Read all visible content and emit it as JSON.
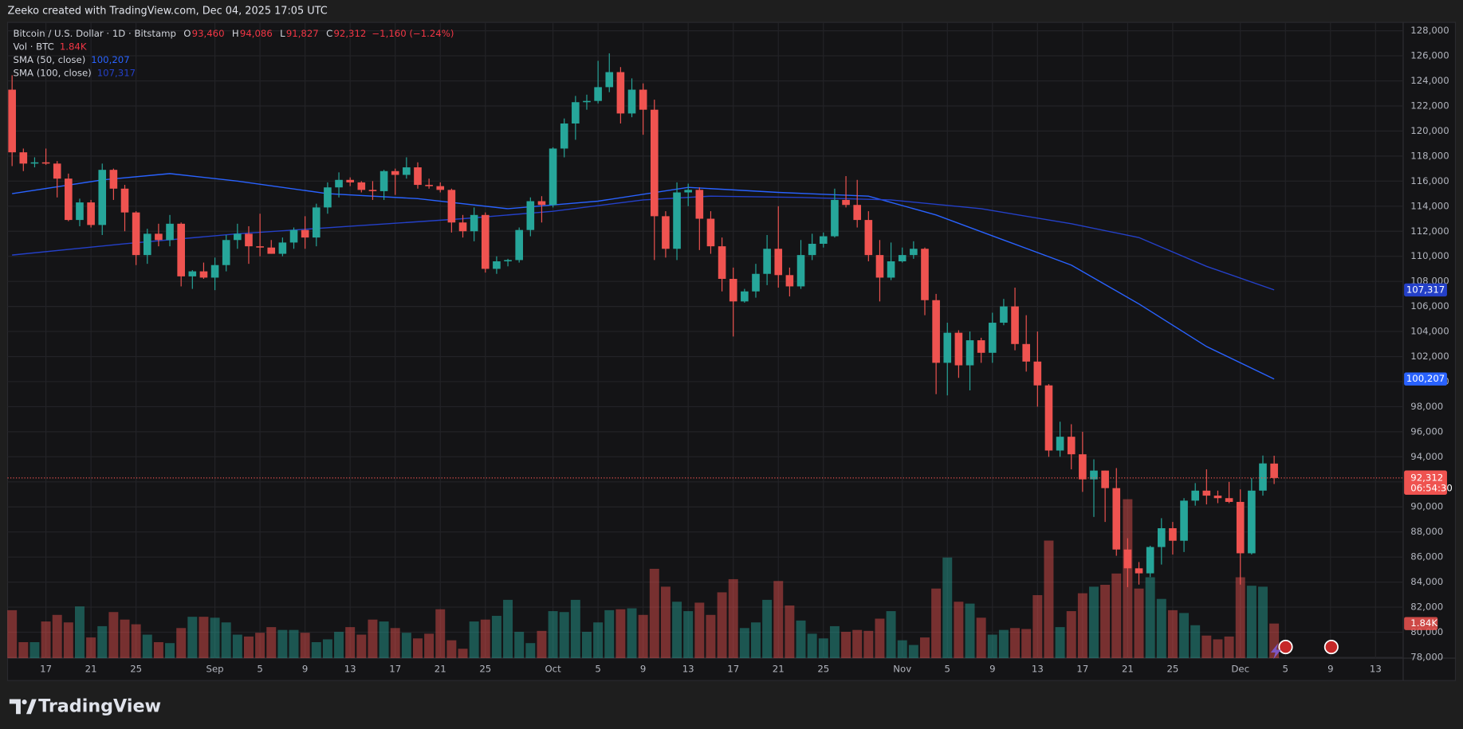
{
  "chart_data": {
    "type": "candlestick",
    "title": "Zeeko created with TradingView.com, Dec 04, 2025 17:05 UTC",
    "legend": {
      "symbol": "Bitcoin / U.S. Dollar · 1D · Bitstamp",
      "ohlc": [
        {
          "key": "O",
          "value": "93,460"
        },
        {
          "key": "H",
          "value": "94,086"
        },
        {
          "key": "L",
          "value": "91,827"
        },
        {
          "key": "C",
          "value": "92,312"
        }
      ],
      "change": "−1,160 (−1.24%)"
    },
    "candles": {
      "up_color": "#26a69a",
      "down_color": "#ef5350",
      "open": [
        123300,
        118300,
        117400,
        117500,
        117400,
        116200,
        112900,
        114300,
        112500,
        116900,
        115400,
        113500,
        110100,
        111800,
        111300,
        112600,
        108400,
        108800,
        108300,
        109300,
        111300,
        111800,
        110800,
        110700,
        110200,
        111100,
        112100,
        111500,
        113900,
        115500,
        116100,
        115900,
        115300,
        115200,
        116800,
        116500,
        117100,
        115700,
        115600,
        115300,
        112700,
        112000,
        113300,
        109000,
        109600,
        109700,
        112100,
        114400,
        114100,
        118600,
        120600,
        122300,
        122400,
        123500,
        124700,
        121400,
        123300,
        121700,
        113200,
        110600,
        115100,
        115300,
        113000,
        110800,
        108200,
        106400,
        107200,
        108600,
        110600,
        108500,
        107600,
        110100,
        111000,
        111600,
        114500,
        114100,
        112900,
        110100,
        108300,
        109600,
        110100,
        110600,
        106500,
        101500,
        103900,
        101300,
        103300,
        102300,
        104700,
        106000,
        103000,
        101600,
        99700,
        94500,
        95600,
        94200,
        92200,
        92900,
        91500,
        86600,
        85100,
        84700,
        86800,
        88300,
        87300,
        90500,
        91300,
        90900,
        90700,
        90400,
        86300,
        91300,
        93460
      ],
      "high": [
        124450,
        118600,
        117900,
        118600,
        117600,
        116600,
        114600,
        114500,
        117400,
        117000,
        115700,
        113600,
        112200,
        112600,
        113300,
        112700,
        108900,
        109500,
        109900,
        111700,
        112600,
        112400,
        113400,
        111300,
        111500,
        112300,
        113200,
        114200,
        115900,
        116700,
        116300,
        116000,
        116000,
        116900,
        117000,
        117900,
        117500,
        116200,
        115900,
        115400,
        113300,
        113900,
        113500,
        110000,
        109800,
        112300,
        114700,
        114800,
        118700,
        121000,
        122800,
        122900,
        125600,
        126200,
        125100,
        124200,
        123800,
        122500,
        113600,
        115900,
        115800,
        115500,
        113600,
        111500,
        109100,
        107400,
        109400,
        111700,
        114000,
        109100,
        111300,
        111800,
        111900,
        115400,
        116400,
        116100,
        113600,
        111300,
        111100,
        110700,
        111200,
        110700,
        107000,
        104700,
        104100,
        104000,
        103500,
        105500,
        106600,
        107500,
        105300,
        104000,
        99800,
        96800,
        96600,
        96000,
        93800,
        92900,
        93100,
        87500,
        85600,
        86900,
        89100,
        88800,
        90700,
        91900,
        93000,
        91300,
        92000,
        91400,
        92300,
        94100,
        94086
      ],
      "low": [
        117200,
        116800,
        117100,
        117300,
        114700,
        112800,
        112400,
        112300,
        111700,
        114500,
        112000,
        109300,
        109400,
        110800,
        110800,
        107600,
        107400,
        108200,
        107300,
        108800,
        110600,
        109400,
        110000,
        110200,
        110000,
        110600,
        110600,
        110800,
        113400,
        114700,
        115600,
        115100,
        114500,
        114500,
        114900,
        116200,
        115400,
        115400,
        115100,
        111900,
        111500,
        111200,
        108700,
        108600,
        109200,
        109500,
        111600,
        112700,
        113900,
        117900,
        119300,
        121700,
        122200,
        123100,
        120600,
        121100,
        119700,
        109700,
        109900,
        109700,
        114000,
        110500,
        110200,
        107200,
        103600,
        106300,
        106700,
        107700,
        107500,
        106800,
        107400,
        109700,
        110700,
        111500,
        113900,
        112300,
        109600,
        106400,
        108100,
        109500,
        109800,
        105300,
        99000,
        98900,
        100300,
        99300,
        101500,
        101500,
        104500,
        102500,
        100800,
        98000,
        94000,
        94000,
        93000,
        91200,
        89200,
        88800,
        86100,
        83600,
        83800,
        84400,
        85400,
        86200,
        86400,
        90100,
        90200,
        90300,
        90300,
        83800,
        86200,
        90900,
        91827
      ],
      "close": [
        118300,
        117400,
        117500,
        117400,
        116200,
        112900,
        114300,
        112500,
        116900,
        115400,
        113500,
        110100,
        111800,
        111300,
        112600,
        108400,
        108800,
        108300,
        109300,
        111300,
        111800,
        110800,
        110700,
        110200,
        111100,
        112100,
        111500,
        113900,
        115500,
        116100,
        115900,
        115300,
        115200,
        116800,
        116500,
        117100,
        115700,
        115600,
        115300,
        112700,
        112000,
        113300,
        109000,
        109600,
        109700,
        112100,
        114400,
        114100,
        118600,
        120600,
        122300,
        122400,
        123500,
        124700,
        121400,
        123300,
        121700,
        113200,
        110600,
        115100,
        115300,
        113000,
        110800,
        108200,
        106400,
        107200,
        108600,
        110600,
        108500,
        107600,
        110100,
        111000,
        111600,
        114500,
        114100,
        112900,
        110100,
        108300,
        109600,
        110100,
        110600,
        106500,
        101500,
        103900,
        101300,
        103300,
        102300,
        104700,
        106000,
        103000,
        101600,
        99700,
        94500,
        95600,
        94200,
        92200,
        92900,
        91500,
        86600,
        85100,
        84700,
        86800,
        88300,
        87300,
        90500,
        91300,
        90900,
        90700,
        90400,
        86300,
        91300,
        93472,
        92312
      ],
      "last_label": "92,312",
      "countdown": "06:54:30"
    },
    "volume": {
      "name": "Vol · BTC",
      "values": [
        2550,
        850,
        850,
        1950,
        2300,
        1900,
        2750,
        1100,
        1700,
        2450,
        2050,
        1800,
        1250,
        850,
        800,
        1600,
        2200,
        2200,
        2150,
        1900,
        1250,
        1150,
        1350,
        1650,
        1500,
        1500,
        1350,
        850,
        1000,
        1400,
        1650,
        1250,
        2050,
        1950,
        1600,
        1350,
        1050,
        1300,
        2600,
        950,
        500,
        1950,
        2050,
        2250,
        3100,
        1400,
        800,
        1450,
        2500,
        2450,
        3100,
        1400,
        1900,
        2550,
        2600,
        2650,
        2300,
        4750,
        3800,
        3000,
        2500,
        2950,
        2300,
        3500,
        4200,
        1600,
        1900,
        3100,
        4100,
        2800,
        2000,
        1300,
        1050,
        1700,
        1400,
        1500,
        1450,
        2100,
        2500,
        950,
        700,
        1100,
        3700,
        5350,
        3000,
        2900,
        2150,
        1250,
        1500,
        1600,
        1550,
        3350,
        6250,
        1650,
        2500,
        3450,
        3800,
        3900,
        4500,
        8450,
        3700,
        4300,
        3150,
        2550,
        2400,
        1750,
        1200,
        1000,
        1150,
        4300,
        3850,
        3800,
        1840
      ],
      "value_label": "1.84K"
    },
    "series": [
      {
        "name": "SMA (50, close)",
        "color": "#2962ff",
        "x": [
          0,
          8,
          14,
          20,
          28,
          36,
          44,
          52,
          60,
          68,
          76,
          82,
          88,
          94,
          100,
          106,
          112
        ],
        "values": [
          115000,
          116100,
          116600,
          116000,
          115000,
          114600,
          113800,
          114400,
          115500,
          115100,
          114800,
          113300,
          111300,
          109300,
          106200,
          102800,
          100207
        ],
        "value_label": "100,207"
      },
      {
        "name": "SMA (100, close)",
        "color": "#2440c8",
        "x": [
          0,
          10,
          20,
          30,
          40,
          48,
          56,
          62,
          70,
          78,
          86,
          94,
          100,
          106,
          112
        ],
        "values": [
          110100,
          111000,
          111800,
          112400,
          113000,
          113600,
          114500,
          114800,
          114700,
          114500,
          113800,
          112600,
          111500,
          109200,
          107317
        ],
        "value_label": "107,317"
      }
    ],
    "xlim": [
      -0.4,
      123.45
    ],
    "xticks": [
      {
        "value": 3,
        "label": "17"
      },
      {
        "value": 7,
        "label": "21"
      },
      {
        "value": 11,
        "label": "25"
      },
      {
        "value": 18,
        "label": "Sep"
      },
      {
        "value": 22,
        "label": "5"
      },
      {
        "value": 26,
        "label": "9"
      },
      {
        "value": 30,
        "label": "13"
      },
      {
        "value": 34,
        "label": "17"
      },
      {
        "value": 38,
        "label": "21"
      },
      {
        "value": 42,
        "label": "25"
      },
      {
        "value": 48,
        "label": "Oct"
      },
      {
        "value": 52,
        "label": "5"
      },
      {
        "value": 56,
        "label": "9"
      },
      {
        "value": 60,
        "label": "13"
      },
      {
        "value": 64,
        "label": "17"
      },
      {
        "value": 68,
        "label": "21"
      },
      {
        "value": 72,
        "label": "25"
      },
      {
        "value": 79,
        "label": "Nov"
      },
      {
        "value": 83,
        "label": "5"
      },
      {
        "value": 87,
        "label": "9"
      },
      {
        "value": 91,
        "label": "13"
      },
      {
        "value": 95,
        "label": "17"
      },
      {
        "value": 99,
        "label": "21"
      },
      {
        "value": 103,
        "label": "25"
      },
      {
        "value": 109,
        "label": "Dec"
      },
      {
        "value": 113,
        "label": "5"
      },
      {
        "value": 117,
        "label": "9"
      },
      {
        "value": 121,
        "label": "13"
      }
    ],
    "ylim": [
      77930,
      128670
    ],
    "yticks": [
      {
        "value": 78000,
        "label": "78,000"
      },
      {
        "value": 80000,
        "label": "80,000"
      },
      {
        "value": 82000,
        "label": "82,000"
      },
      {
        "value": 84000,
        "label": "84,000"
      },
      {
        "value": 86000,
        "label": "86,000"
      },
      {
        "value": 88000,
        "label": "88,000"
      },
      {
        "value": 90000,
        "label": "90,000"
      },
      {
        "value": 92000,
        "label": "92,000"
      },
      {
        "value": 94000,
        "label": "94,000"
      },
      {
        "value": 96000,
        "label": "96,000"
      },
      {
        "value": 98000,
        "label": "98,000"
      },
      {
        "value": 100000,
        "label": "100,000"
      },
      {
        "value": 102000,
        "label": "102,000"
      },
      {
        "value": 104000,
        "label": "104,000"
      },
      {
        "value": 106000,
        "label": "106,000"
      },
      {
        "value": 108000,
        "label": "108,000"
      },
      {
        "value": 110000,
        "label": "110,000"
      },
      {
        "value": 112000,
        "label": "112,000"
      },
      {
        "value": 114000,
        "label": "114,000"
      },
      {
        "value": 116000,
        "label": "116,000"
      },
      {
        "value": 118000,
        "label": "118,000"
      },
      {
        "value": 120000,
        "label": "120,000"
      },
      {
        "value": 122000,
        "label": "122,000"
      },
      {
        "value": 124000,
        "label": "124,000"
      },
      {
        "value": 126000,
        "label": "126,000"
      },
      {
        "value": 128000,
        "label": "128,000"
      }
    ],
    "grid": true,
    "footer": "TradingView"
  }
}
